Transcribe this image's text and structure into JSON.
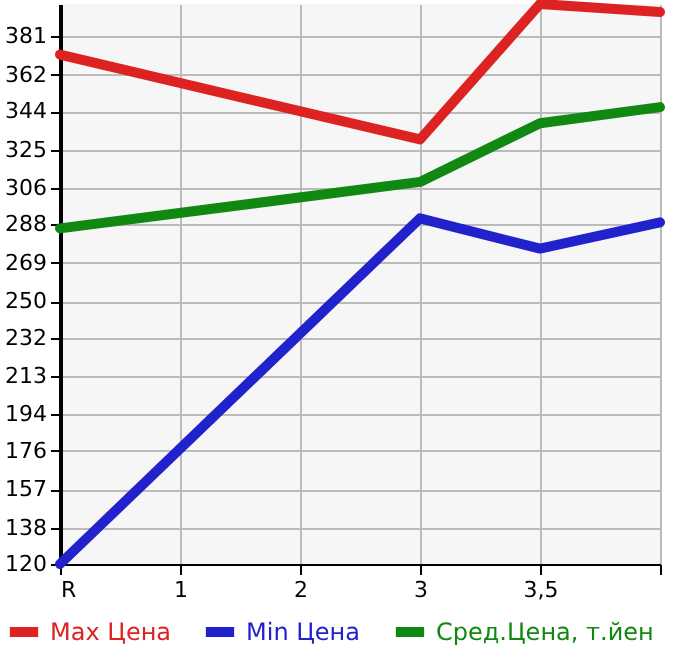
{
  "chart_data": {
    "type": "line",
    "categories": [
      "R",
      "1",
      "2",
      "3",
      "3,5",
      null
    ],
    "series": [
      {
        "name": "Max Цена",
        "color": "#dd2222",
        "values": [
          372,
          null,
          null,
          330,
          397,
          393
        ]
      },
      {
        "name": "Min Цена",
        "color": "#2222cc",
        "values": [
          120,
          null,
          null,
          291,
          276,
          289
        ]
      },
      {
        "name": "Сред.Цена, т.йен",
        "color": "#118811",
        "values": [
          286,
          null,
          null,
          309,
          338,
          346
        ]
      }
    ],
    "ylim": [
      120,
      397
    ],
    "yticks": [
      120,
      138,
      157,
      176,
      194,
      213,
      232,
      250,
      269,
      288,
      306,
      325,
      344,
      362,
      381
    ],
    "grid": true,
    "legend": "bottom",
    "marker": "none",
    "line_style": "solid"
  }
}
